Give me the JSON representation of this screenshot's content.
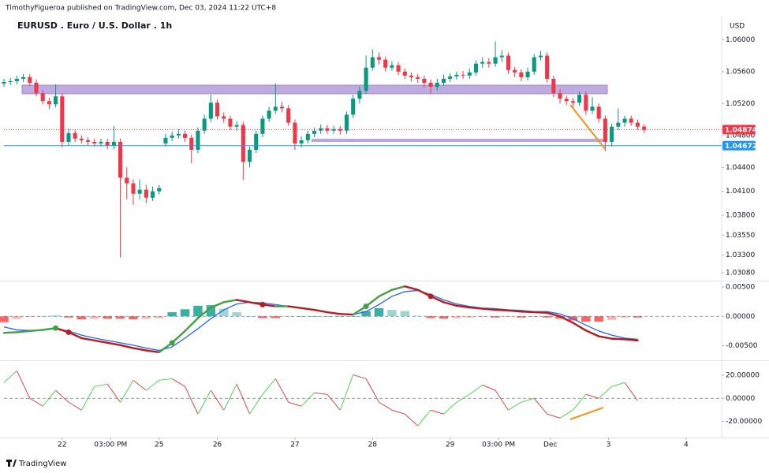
{
  "header": {
    "byline": "TimothyFigueroa published on TradingView.com, Dec 03, 2024 11:22 UTC+8"
  },
  "footer": {
    "brand": "TradingView"
  },
  "chart_data": [
    {
      "type": "candlestick",
      "title": "EURUSD . Euro / U.S. Dollar . 1h",
      "axis_unit": "USD",
      "up_color": "#089981",
      "down_color": "#f23645",
      "grid": false,
      "xlim": [
        0,
        222
      ],
      "x": [
        0,
        2,
        4,
        6,
        8,
        10,
        12,
        14,
        16,
        18,
        20,
        22,
        24,
        26,
        28,
        30,
        32,
        34,
        36,
        38,
        40,
        42,
        44,
        46,
        48,
        50,
        52,
        54,
        56,
        58,
        60,
        62,
        64,
        66,
        68,
        70,
        72,
        74,
        76,
        78,
        80,
        82,
        84,
        86,
        88,
        90,
        92,
        94,
        96,
        98,
        100,
        102,
        104,
        106,
        108,
        110,
        112,
        114,
        116,
        118,
        120,
        122,
        124,
        126,
        128,
        130,
        132,
        134,
        136,
        138,
        140,
        142,
        144,
        146,
        148,
        150,
        152,
        154,
        156,
        158,
        160,
        162,
        164,
        166,
        168,
        170,
        172,
        174,
        176,
        178,
        180,
        182,
        184,
        186,
        188,
        190,
        192,
        194,
        196,
        198
      ],
      "open": [
        1.0545,
        1.0547,
        1.0548,
        1.0551,
        1.0553,
        1.0546,
        1.0533,
        1.0523,
        1.0519,
        1.0529,
        1.0472,
        1.0483,
        1.0476,
        1.0474,
        1.0472,
        1.047,
        1.0472,
        1.0467,
        1.0472,
        1.0427,
        1.042,
        1.0407,
        1.0412,
        1.0402,
        1.041,
        1.047,
        1.0477,
        1.048,
        1.0482,
        1.0477,
        1.0462,
        1.0486,
        1.0501,
        1.0521,
        1.0504,
        1.0501,
        1.0491,
        1.0493,
        1.0447,
        1.0462,
        1.0482,
        1.0501,
        1.0511,
        1.0516,
        1.0514,
        1.0496,
        1.047,
        1.0474,
        1.0482,
        1.0486,
        1.0489,
        1.0486,
        1.0488,
        1.0486,
        1.0506,
        1.0526,
        1.0536,
        1.0565,
        1.0578,
        1.0575,
        1.0565,
        1.0568,
        1.056,
        1.0555,
        1.0553,
        1.0551,
        1.0546,
        1.0541,
        1.0546,
        1.0551,
        1.0554,
        1.0556,
        1.0555,
        1.0559,
        1.057,
        1.0572,
        1.057,
        1.0578,
        1.058,
        1.0562,
        1.0559,
        1.0553,
        1.056,
        1.0578,
        1.058,
        1.0551,
        1.0533,
        1.0526,
        1.0523,
        1.0521,
        1.0531,
        1.0511,
        1.0516,
        1.0501,
        1.0472,
        1.0491,
        1.0496,
        1.0501,
        1.0496,
        1.0491
      ],
      "high": [
        1.0551,
        1.0552,
        1.0555,
        1.0557,
        1.0557,
        1.055,
        1.0537,
        1.0527,
        1.0544,
        1.0533,
        1.0489,
        1.0487,
        1.048,
        1.0478,
        1.0476,
        1.0476,
        1.0476,
        1.0492,
        1.0476,
        1.044,
        1.0425,
        1.0425,
        1.0418,
        1.0416,
        1.0418,
        1.0482,
        1.0485,
        1.0488,
        1.0486,
        1.0481,
        1.049,
        1.0506,
        1.0531,
        1.0525,
        1.0509,
        1.0505,
        1.0498,
        1.0497,
        1.0466,
        1.0486,
        1.0505,
        1.0516,
        1.0545,
        1.0522,
        1.0518,
        1.05,
        1.0479,
        1.0486,
        1.049,
        1.0494,
        1.0493,
        1.0492,
        1.0492,
        1.051,
        1.0531,
        1.0541,
        1.058,
        1.0588,
        1.0584,
        1.0579,
        1.0573,
        1.0572,
        1.0564,
        1.0559,
        1.0557,
        1.0555,
        1.055,
        1.0551,
        1.0556,
        1.0558,
        1.056,
        1.0561,
        1.0564,
        1.0574,
        1.0578,
        1.0577,
        1.0598,
        1.0587,
        1.0584,
        1.0566,
        1.0563,
        1.0565,
        1.0582,
        1.0586,
        1.0584,
        1.0555,
        1.0538,
        1.053,
        1.0527,
        1.0535,
        1.0535,
        1.0528,
        1.052,
        1.0505,
        1.0495,
        1.0514,
        1.0505,
        1.0505,
        1.05,
        1.0494
      ],
      "low": [
        1.0541,
        1.0543,
        1.0544,
        1.0547,
        1.0542,
        1.0529,
        1.0519,
        1.0513,
        1.0515,
        1.0465,
        1.0468,
        1.0472,
        1.047,
        1.0468,
        1.0466,
        1.0466,
        1.0463,
        1.0463,
        1.0327,
        1.04,
        1.0393,
        1.04,
        1.0395,
        1.0398,
        1.0406,
        1.0466,
        1.0473,
        1.0476,
        1.0472,
        1.0445,
        1.0458,
        1.0482,
        1.0497,
        1.05,
        1.0496,
        1.0487,
        1.0486,
        1.0424,
        1.044,
        1.0458,
        1.0478,
        1.0497,
        1.0507,
        1.0509,
        1.0492,
        1.0462,
        1.0465,
        1.047,
        1.0478,
        1.0482,
        1.0482,
        1.0482,
        1.0481,
        1.0482,
        1.0502,
        1.052,
        1.0532,
        1.0561,
        1.0569,
        1.056,
        1.0561,
        1.0556,
        1.0551,
        1.0548,
        1.0546,
        1.054,
        1.0532,
        1.0536,
        1.0542,
        1.0547,
        1.055,
        1.0551,
        1.0551,
        1.0555,
        1.0565,
        1.0565,
        1.0566,
        1.0572,
        1.0557,
        1.0553,
        1.0548,
        1.0549,
        1.0556,
        1.0574,
        1.0546,
        1.0528,
        1.052,
        1.0518,
        1.0515,
        1.0517,
        1.0506,
        1.0507,
        1.0496,
        1.046,
        1.0466,
        1.0487,
        1.0491,
        1.0492,
        1.0487,
        1.0483
      ],
      "close": [
        1.0547,
        1.0548,
        1.0551,
        1.0553,
        1.0546,
        1.0533,
        1.0523,
        1.0519,
        1.0529,
        1.0472,
        1.0483,
        1.0476,
        1.0474,
        1.0472,
        1.047,
        1.0472,
        1.0467,
        1.0472,
        1.0427,
        1.042,
        1.0407,
        1.0412,
        1.0402,
        1.041,
        1.0414,
        1.0477,
        1.048,
        1.0482,
        1.0477,
        1.0462,
        1.0486,
        1.0501,
        1.0521,
        1.0504,
        1.0501,
        1.0491,
        1.0493,
        1.0447,
        1.0462,
        1.0482,
        1.0501,
        1.0511,
        1.0516,
        1.0514,
        1.0496,
        1.047,
        1.0474,
        1.0482,
        1.0486,
        1.0489,
        1.0486,
        1.0488,
        1.0486,
        1.0506,
        1.0526,
        1.0536,
        1.0565,
        1.0578,
        1.0575,
        1.0565,
        1.0568,
        1.056,
        1.0555,
        1.0553,
        1.0551,
        1.0546,
        1.0541,
        1.0546,
        1.0551,
        1.0554,
        1.0556,
        1.0555,
        1.0559,
        1.057,
        1.0572,
        1.057,
        1.0578,
        1.058,
        1.0562,
        1.0559,
        1.0553,
        1.056,
        1.0578,
        1.058,
        1.0551,
        1.0533,
        1.0526,
        1.0523,
        1.0521,
        1.0531,
        1.0511,
        1.0516,
        1.0501,
        1.0472,
        1.0491,
        1.0496,
        1.0501,
        1.0496,
        1.0491,
        1.0487
      ],
      "ylim": [
        1.0299,
        1.063
      ],
      "yticks": [
        {
          "value": 1.06,
          "label": "1.06000"
        },
        {
          "value": 1.056,
          "label": "1.05600"
        },
        {
          "value": 1.052,
          "label": "1.05200"
        },
        {
          "value": 1.048,
          "label": "1.04800"
        },
        {
          "value": 1.044,
          "label": "1.04400"
        },
        {
          "value": 1.041,
          "label": "1.04100"
        },
        {
          "value": 1.038,
          "label": "1.03800"
        },
        {
          "value": 1.0355,
          "label": "1.03550"
        },
        {
          "value": 1.033,
          "label": "1.03300"
        },
        {
          "value": 1.0308,
          "label": "1.03080"
        }
      ],
      "price_labels": [
        {
          "value": 1.04874,
          "label": "1.04874",
          "color": "#f23645",
          "line_style": "dotted"
        },
        {
          "value": 1.04672,
          "label": "1.04672",
          "color": "#2196f3",
          "line_style": "solid"
        }
      ]
    },
    {
      "type": "macd",
      "xlim": [
        0,
        222
      ],
      "zero_line": true,
      "x": [
        0,
        4,
        8,
        12,
        16,
        20,
        24,
        28,
        32,
        36,
        40,
        44,
        48,
        52,
        56,
        60,
        64,
        68,
        72,
        76,
        80,
        84,
        88,
        92,
        96,
        100,
        104,
        108,
        112,
        116,
        120,
        124,
        128,
        132,
        136,
        140,
        144,
        148,
        152,
        156,
        160,
        164,
        168,
        172,
        176,
        180,
        184,
        188,
        192,
        196
      ],
      "macd": {
        "up_color": "#43a047",
        "down_color": "#b71c1c",
        "values": [
          -0.0028,
          -0.0027,
          -0.0025,
          -0.0023,
          -0.002,
          -0.0027,
          -0.0037,
          -0.0041,
          -0.0045,
          -0.0049,
          -0.0054,
          -0.0058,
          -0.0061,
          -0.0045,
          -0.0025,
          -0.0003,
          0.0015,
          0.0024,
          0.0028,
          0.0024,
          0.002,
          0.0017,
          0.0017,
          0.0014,
          0.0011,
          0.0007,
          0.0004,
          0.0003,
          0.0017,
          0.0034,
          0.0045,
          0.0051,
          0.0045,
          0.0034,
          0.0024,
          0.0018,
          0.0015,
          0.0013,
          0.0011,
          0.001,
          0.0008,
          0.0007,
          0.0006,
          0.0,
          -0.0011,
          -0.0024,
          -0.0034,
          -0.0038,
          -0.0039,
          -0.0041
        ]
      },
      "signal": {
        "color": "#2962ff",
        "values": [
          -0.0018,
          -0.0023,
          -0.0024,
          -0.0023,
          -0.0021,
          -0.0025,
          -0.0032,
          -0.0037,
          -0.0041,
          -0.0045,
          -0.0049,
          -0.0054,
          -0.0058,
          -0.0052,
          -0.0037,
          -0.0021,
          -0.0004,
          0.0011,
          0.0021,
          0.0024,
          0.0023,
          0.002,
          0.0017,
          0.0014,
          0.0011,
          0.0007,
          0.0004,
          0.0003,
          0.0008,
          0.002,
          0.0034,
          0.0042,
          0.0044,
          0.0037,
          0.0028,
          0.0021,
          0.0017,
          0.0014,
          0.0013,
          0.0011,
          0.001,
          0.0008,
          0.0008,
          0.0004,
          -0.0004,
          -0.0015,
          -0.0025,
          -0.0032,
          -0.0037,
          -0.0039
        ]
      },
      "histogram": {
        "up_color": "#26a69a",
        "down_color": "#ff5252",
        "values": [
          -0.001,
          -0.0004,
          -0.0001,
          0.0,
          0.0001,
          -0.0002,
          -0.0005,
          -0.0004,
          -0.0004,
          -0.0004,
          -0.0005,
          -0.0004,
          -0.0003,
          0.0007,
          0.0012,
          0.0018,
          0.0019,
          0.0013,
          0.0007,
          0.0,
          -0.0003,
          -0.0003,
          0.0,
          0.0,
          0.0,
          0.0,
          0.0,
          0.0,
          0.0009,
          0.0014,
          0.0011,
          0.0009,
          0.0001,
          -0.0003,
          -0.0004,
          -0.0003,
          -0.0002,
          -0.0001,
          -0.0002,
          -0.0001,
          -0.0002,
          -0.0001,
          -0.0002,
          -0.0004,
          -0.0007,
          -0.0009,
          -0.0009,
          -0.0006,
          -0.0002,
          -0.0002
        ]
      },
      "ylim": [
        -0.0072,
        0.0058
      ],
      "yticks": [
        {
          "value": 0.005,
          "label": "0.00500"
        },
        {
          "value": 0,
          "label": "0.00000"
        },
        {
          "value": -0.005,
          "label": "-0.00500"
        }
      ]
    },
    {
      "type": "line",
      "xlim": [
        0,
        222
      ],
      "zero_line": true,
      "up_color": "#4cd94c",
      "down_color": "#e04848",
      "x": [
        0,
        4,
        8,
        12,
        16,
        20,
        24,
        28,
        32,
        36,
        40,
        44,
        48,
        52,
        56,
        60,
        64,
        68,
        72,
        76,
        80,
        84,
        88,
        92,
        96,
        100,
        104,
        108,
        112,
        116,
        120,
        124,
        128,
        132,
        136,
        140,
        144,
        148,
        152,
        156,
        160,
        164,
        168,
        172,
        176,
        180,
        184,
        188,
        192,
        196
      ],
      "values": [
        13.6,
        23.7,
        0,
        -6.8,
        6.8,
        -3.4,
        -10.2,
        10.2,
        12.2,
        -3.4,
        15.6,
        6.8,
        15.6,
        16.9,
        10.2,
        -13.6,
        6.8,
        -10.2,
        12.2,
        -13.6,
        3.4,
        16.9,
        -3.4,
        -6.8,
        4.7,
        3.4,
        -10.2,
        20.3,
        16.9,
        -3.4,
        -10.2,
        -13.6,
        -23.7,
        -10.2,
        -13.6,
        -3.4,
        3.4,
        11.5,
        6.8,
        -10.2,
        -3.4,
        0,
        -13.6,
        -17.0,
        -10.2,
        3.4,
        0,
        10.2,
        13.6,
        -2.0
      ],
      "ylim": [
        -32.5,
        30.8
      ],
      "yticks": [
        {
          "value": 20,
          "label": "20.00000"
        },
        {
          "value": 0,
          "label": "0.00000"
        },
        {
          "value": -20,
          "label": "-20.00000"
        }
      ],
      "xticks": [
        {
          "value": 18,
          "label": "22"
        },
        {
          "value": 33,
          "label": "03:00 PM"
        },
        {
          "value": 48,
          "label": "25"
        },
        {
          "value": 66,
          "label": "26"
        },
        {
          "value": 90,
          "label": "27"
        },
        {
          "value": 114,
          "label": "28"
        },
        {
          "value": 138,
          "label": "29"
        },
        {
          "value": 153,
          "label": "03:00 PM"
        },
        {
          "value": 169,
          "label": "Dec"
        },
        {
          "value": 187,
          "label": "3"
        },
        {
          "value": 211,
          "label": "4"
        }
      ]
    }
  ]
}
